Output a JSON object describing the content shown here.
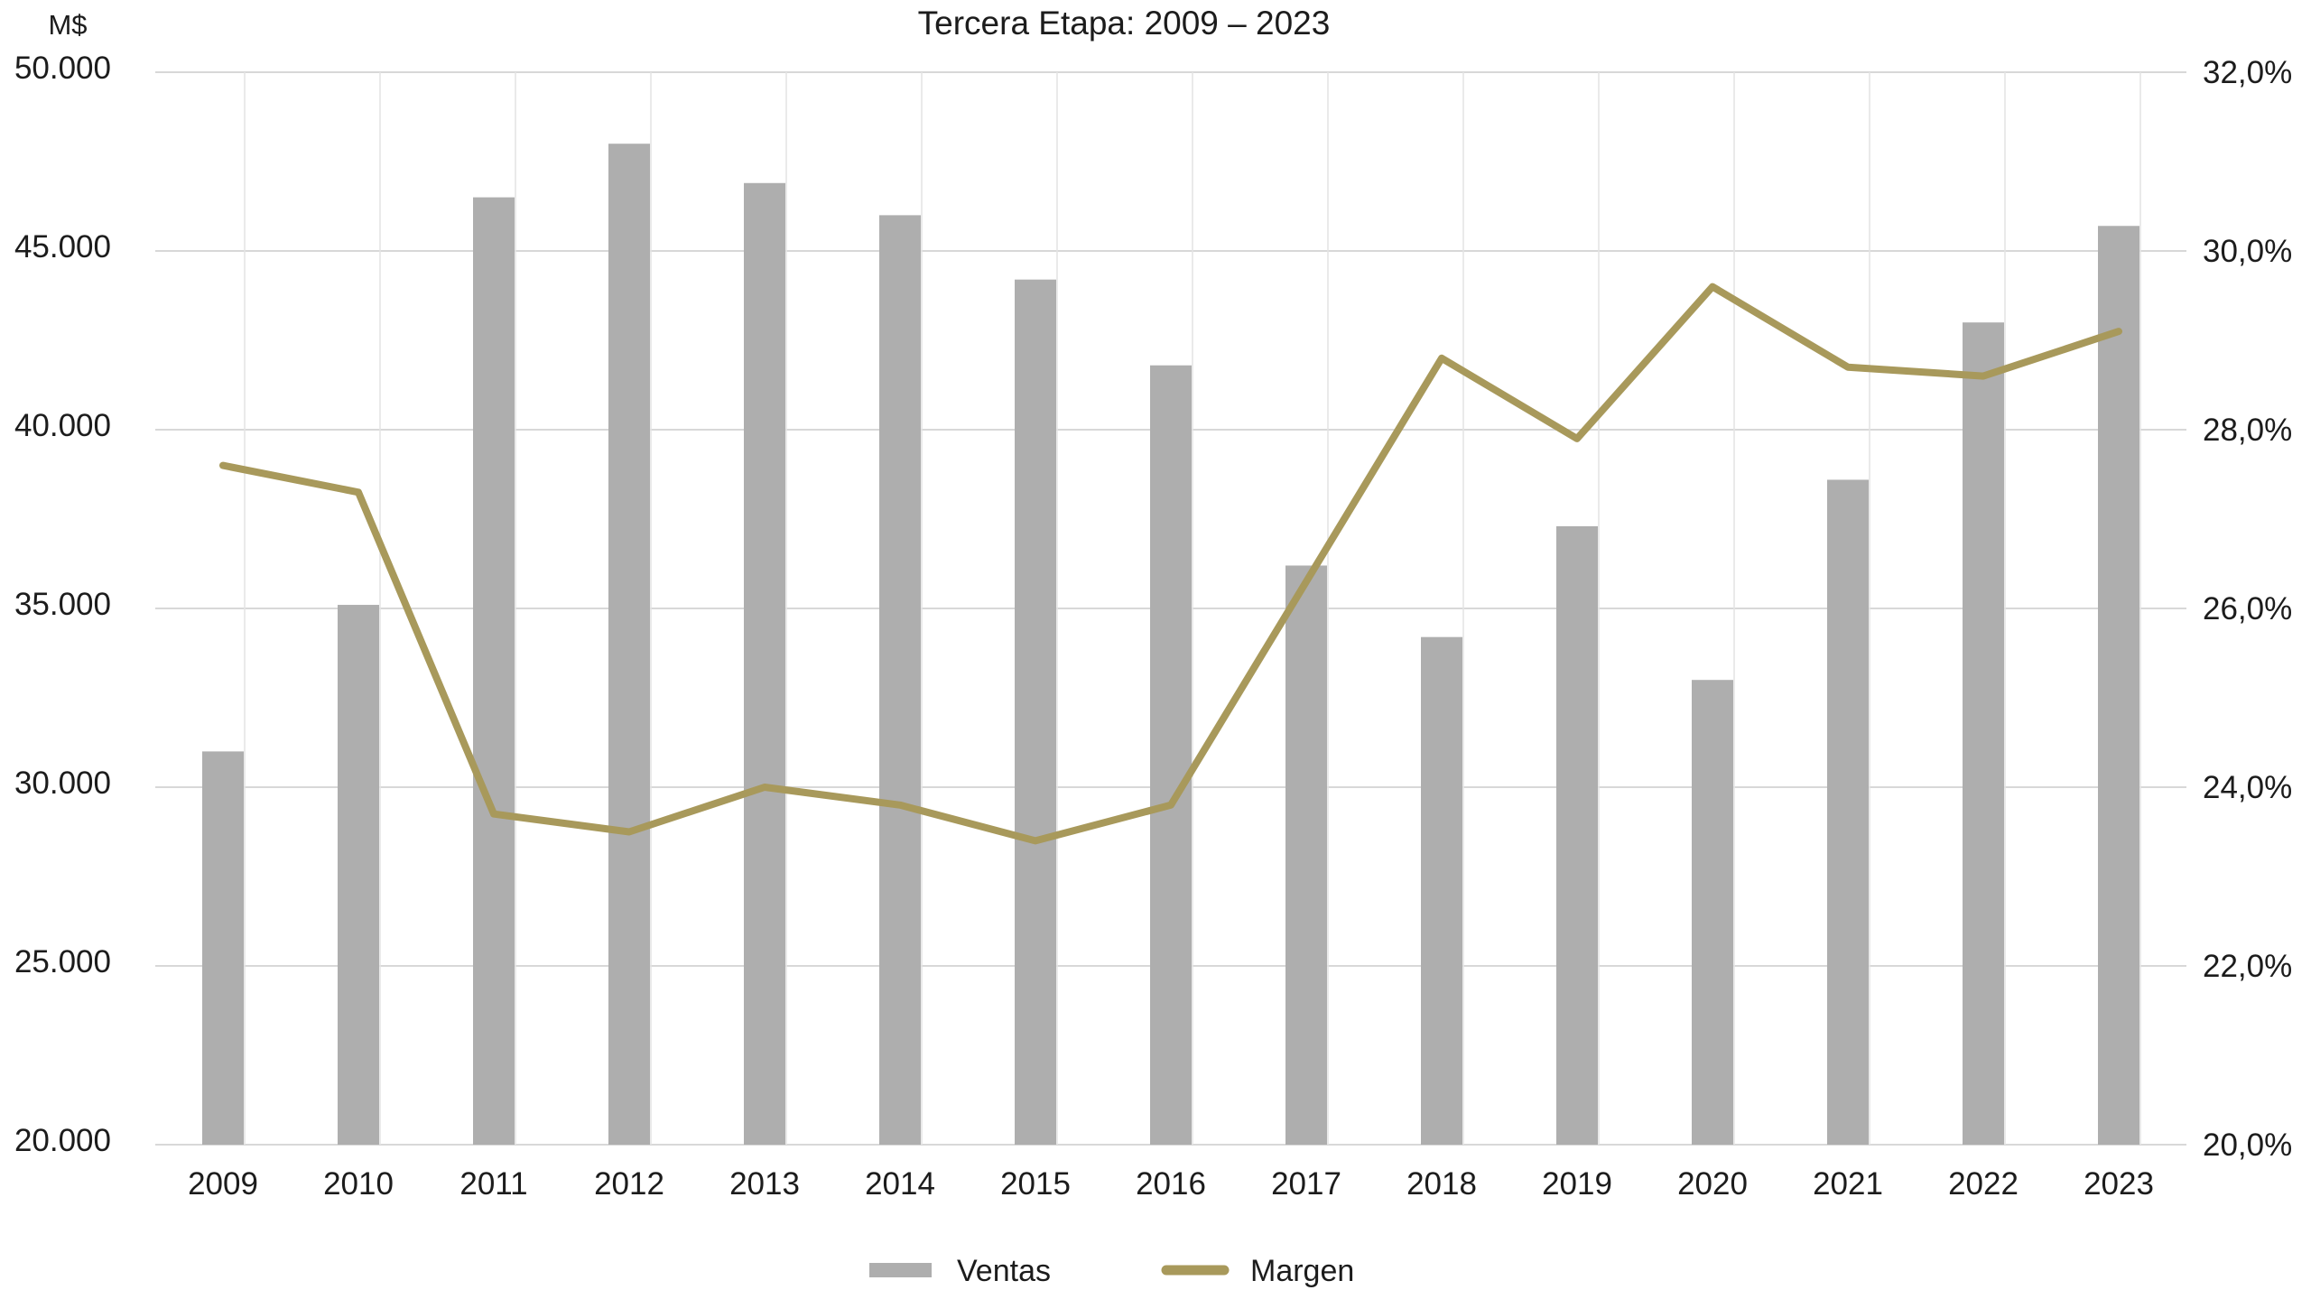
{
  "title": "Tercera Etapa: 2009 – 2023",
  "left_axis": {
    "unit_label": "M$",
    "tick_labels": [
      "50.000",
      "45.000",
      "40.000",
      "35.000",
      "30.000",
      "25.000",
      "20.000"
    ]
  },
  "right_axis": {
    "tick_labels": [
      "32,0%",
      "30,0%",
      "28,0%",
      "26,0%",
      "24,0%",
      "22,0%",
      "20,0%"
    ]
  },
  "legend": {
    "ventas_label": "Ventas",
    "margen_label": "Margen"
  },
  "colors": {
    "bar": "#AEAEAE",
    "line": "#A8995B",
    "grid": "#D8D8D8",
    "grid_vertical": "#E4E4E4",
    "text": "#1C1C1C"
  },
  "chart_data": {
    "type": "bar+line combo",
    "title": "Tercera Etapa: 2009 – 2023",
    "categories": [
      "2009",
      "2010",
      "2011",
      "2012",
      "2013",
      "2014",
      "2015",
      "2016",
      "2017",
      "2018",
      "2019",
      "2020",
      "2021",
      "2022",
      "2023"
    ],
    "series": [
      {
        "name": "Ventas",
        "type": "bar",
        "axis": "left",
        "unit": "M$",
        "color": "#AEAEAE",
        "values": [
          31000,
          35100,
          46500,
          48000,
          46900,
          46000,
          44200,
          41800,
          36200,
          34200,
          37300,
          33000,
          38600,
          43000,
          45700
        ]
      },
      {
        "name": "Margen",
        "type": "line",
        "axis": "right",
        "unit": "%",
        "color": "#A8995B",
        "values": [
          27.6,
          27.3,
          23.7,
          23.5,
          24.0,
          23.8,
          23.4,
          23.8,
          26.3,
          28.8,
          27.9,
          29.6,
          28.7,
          28.6,
          29.1
        ]
      }
    ],
    "left_ylim": [
      20000,
      50000
    ],
    "left_step": 5000,
    "right_ylim": [
      20,
      32
    ],
    "right_step": 2,
    "grid": "horizontal major, faint vertical category lines",
    "legend_position": "bottom center"
  }
}
